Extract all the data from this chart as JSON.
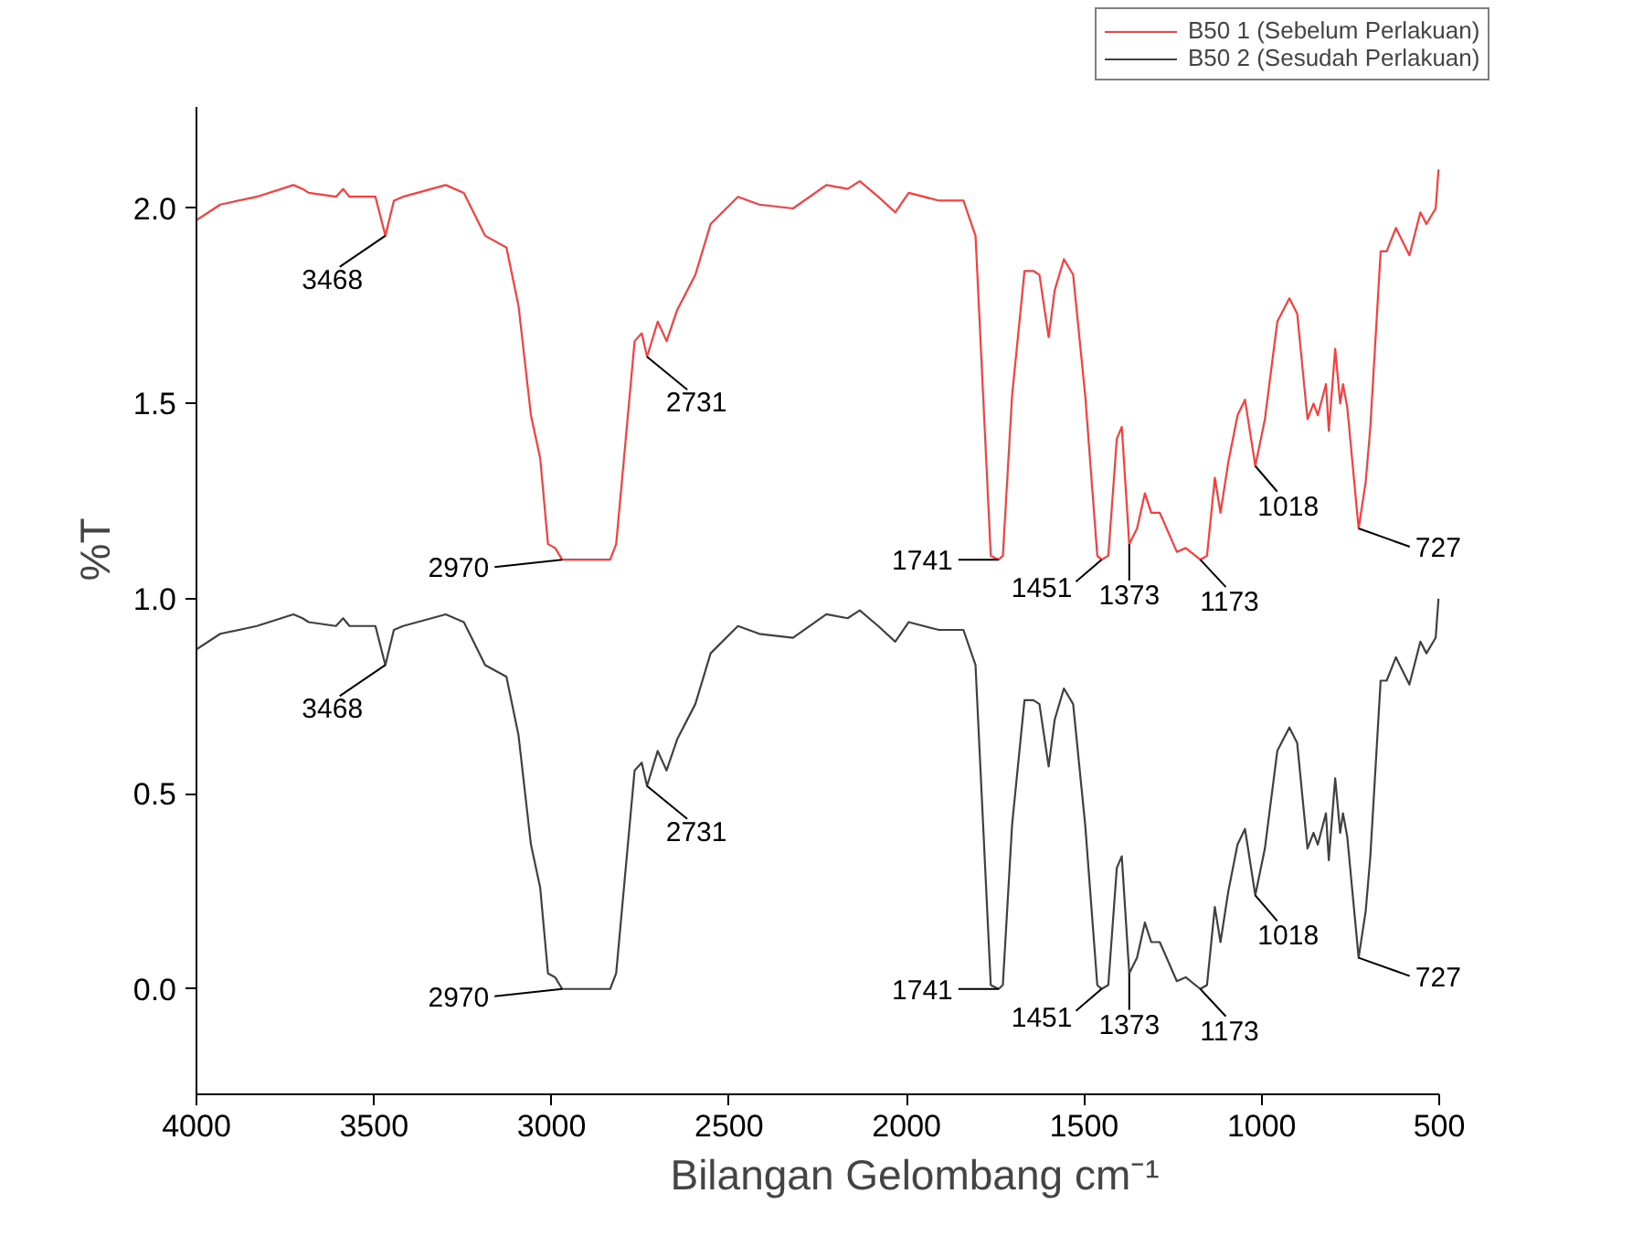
{
  "chart_data": {
    "type": "line",
    "xlabel": "Bilangan Gelombang cm⁻¹",
    "ylabel": "%T",
    "x": [
      4000,
      3933,
      3830,
      3727,
      3701,
      3684,
      3607,
      3587,
      3569,
      3496,
      3468,
      3444,
      3418,
      3298,
      3247,
      3187,
      3127,
      3093,
      3058,
      3032,
      3010,
      2990,
      2970,
      2835,
      2818,
      2766,
      2746,
      2731,
      2701,
      2676,
      2646,
      2595,
      2552,
      2475,
      2415,
      2320,
      2226,
      2166,
      2132,
      2080,
      2032,
      1994,
      1909,
      1840,
      1806,
      1763,
      1741,
      1729,
      1703,
      1668,
      1643,
      1626,
      1600,
      1583,
      1557,
      1531,
      1497,
      1463,
      1451,
      1432,
      1408,
      1394,
      1373,
      1351,
      1329,
      1311,
      1287,
      1239,
      1214,
      1173,
      1154,
      1132,
      1116,
      1094,
      1068,
      1047,
      1018,
      991,
      956,
      922,
      900,
      871,
      854,
      842,
      819,
      811,
      793,
      779,
      771,
      759,
      727,
      707,
      694,
      665,
      648,
      622,
      584,
      553,
      536,
      510,
      502
    ],
    "series": [
      {
        "name": "B50 1 (Sebelum Perlakuan)",
        "color": "#ff3b3b",
        "values": [
          1.97,
          2.01,
          2.03,
          2.06,
          2.05,
          2.04,
          2.03,
          2.05,
          2.03,
          2.03,
          1.93,
          2.02,
          2.03,
          2.06,
          2.04,
          1.93,
          1.9,
          1.75,
          1.47,
          1.36,
          1.14,
          1.13,
          1.1,
          1.1,
          1.14,
          1.66,
          1.68,
          1.62,
          1.71,
          1.66,
          1.74,
          1.83,
          1.96,
          2.03,
          2.01,
          2.0,
          2.06,
          2.05,
          2.07,
          2.03,
          1.99,
          2.04,
          2.02,
          2.02,
          1.93,
          1.11,
          1.1,
          1.11,
          1.52,
          1.84,
          1.84,
          1.83,
          1.67,
          1.79,
          1.87,
          1.83,
          1.52,
          1.11,
          1.1,
          1.11,
          1.41,
          1.44,
          1.14,
          1.18,
          1.27,
          1.22,
          1.22,
          1.12,
          1.13,
          1.1,
          1.11,
          1.31,
          1.22,
          1.35,
          1.47,
          1.51,
          1.34,
          1.46,
          1.71,
          1.77,
          1.73,
          1.46,
          1.5,
          1.47,
          1.55,
          1.43,
          1.64,
          1.5,
          1.55,
          1.49,
          1.18,
          1.3,
          1.44,
          1.89,
          1.89,
          1.95,
          1.88,
          1.99,
          1.96,
          2.0,
          2.1
        ]
      },
      {
        "name": "B50 2 (Sesudah Perlakuan)",
        "color": "#404040",
        "values": [
          0.87,
          0.91,
          0.93,
          0.96,
          0.95,
          0.94,
          0.93,
          0.95,
          0.93,
          0.93,
          0.83,
          0.92,
          0.93,
          0.96,
          0.94,
          0.83,
          0.8,
          0.65,
          0.37,
          0.26,
          0.04,
          0.03,
          0.0,
          0.0,
          0.04,
          0.56,
          0.58,
          0.52,
          0.61,
          0.56,
          0.64,
          0.73,
          0.86,
          0.93,
          0.91,
          0.9,
          0.96,
          0.95,
          0.97,
          0.93,
          0.89,
          0.94,
          0.92,
          0.92,
          0.83,
          0.01,
          0.0,
          0.01,
          0.42,
          0.74,
          0.74,
          0.73,
          0.57,
          0.69,
          0.77,
          0.73,
          0.42,
          0.01,
          0.0,
          0.01,
          0.31,
          0.34,
          0.04,
          0.08,
          0.17,
          0.12,
          0.12,
          0.02,
          0.03,
          0.0,
          0.01,
          0.21,
          0.12,
          0.25,
          0.37,
          0.41,
          0.24,
          0.36,
          0.61,
          0.67,
          0.63,
          0.36,
          0.4,
          0.37,
          0.45,
          0.33,
          0.54,
          0.4,
          0.45,
          0.39,
          0.08,
          0.2,
          0.34,
          0.79,
          0.79,
          0.85,
          0.78,
          0.89,
          0.86,
          0.9,
          1.0
        ]
      }
    ],
    "xlim": [
      4000,
      500
    ],
    "xticks": [
      4000,
      3500,
      3000,
      2500,
      2000,
      1500,
      1000,
      500
    ],
    "ylim": [
      -0.27,
      2.26
    ],
    "yticks": [
      {
        "value": 0,
        "label": "0.0"
      },
      {
        "value": 0.5,
        "label": "0.5"
      },
      {
        "value": 1,
        "label": "1.0"
      },
      {
        "value": 1.5,
        "label": "1.5"
      },
      {
        "value": 2,
        "label": "2.0"
      }
    ],
    "grid": false,
    "legend": "top right",
    "line_style": "solid",
    "marker": "none",
    "annotations": [
      {
        "text": "3468",
        "x": 3468,
        "y": 1.93
      },
      {
        "text": "2731",
        "x": 2731,
        "y": 1.62
      },
      {
        "text": "2970",
        "x": 2970,
        "y": 1.1
      },
      {
        "text": "1741",
        "x": 1741,
        "y": 1.1
      },
      {
        "text": "1451",
        "x": 1451,
        "y": 1.1
      },
      {
        "text": "1373",
        "x": 1373,
        "y": 1.14
      },
      {
        "text": "1173",
        "x": 1173,
        "y": 1.1
      },
      {
        "text": "1018",
        "x": 1018,
        "y": 1.34
      },
      {
        "text": "727",
        "x": 727,
        "y": 1.18
      },
      {
        "text": "3468",
        "x": 3468,
        "y": 0.83
      },
      {
        "text": "2731",
        "x": 2731,
        "y": 0.52
      },
      {
        "text": "2970",
        "x": 2970,
        "y": 0.0
      },
      {
        "text": "1741",
        "x": 1741,
        "y": 0.0
      },
      {
        "text": "1451",
        "x": 1451,
        "y": 0.0
      },
      {
        "text": "1373",
        "x": 1373,
        "y": 0.04
      },
      {
        "text": "1173",
        "x": 1173,
        "y": 0.0
      },
      {
        "text": "1018",
        "x": 1018,
        "y": 0.24
      },
      {
        "text": "727",
        "x": 727,
        "y": 0.08
      }
    ]
  }
}
